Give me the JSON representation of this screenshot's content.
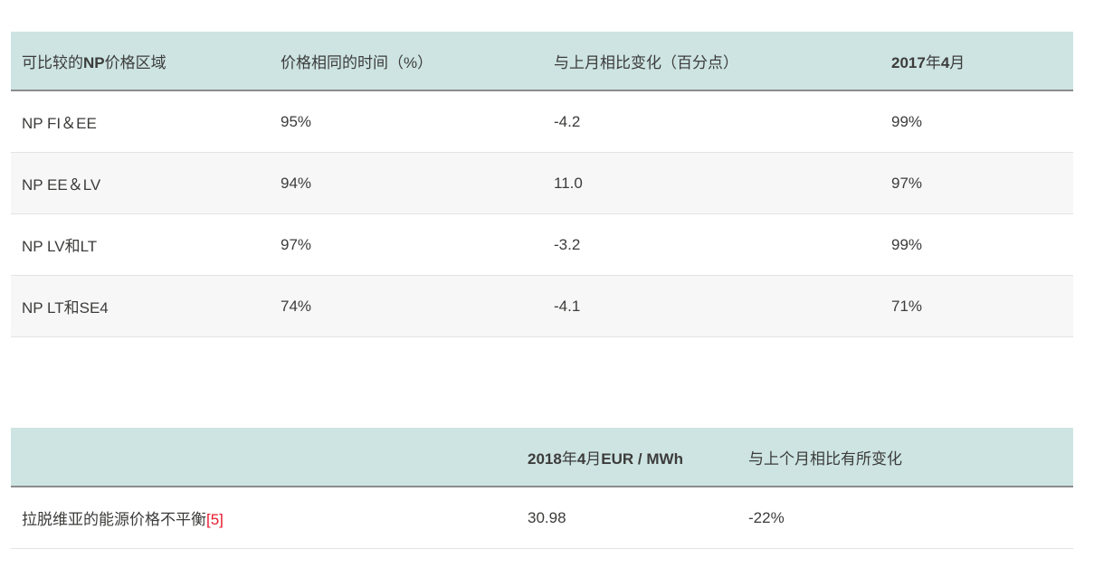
{
  "colors": {
    "header_bg": "#cde4e2",
    "header_border": "#8c8c8c",
    "row_border": "#e3e3e3",
    "row_alt_bg": "#f7f7f7",
    "text": "#3c3c3b",
    "footnote_red": "#e8192c"
  },
  "table1": {
    "headers": [
      {
        "segments": [
          {
            "text": "可比较的",
            "bold": false
          },
          {
            "text": "NP",
            "bold": true
          },
          {
            "text": "价格区域",
            "bold": false
          }
        ]
      },
      {
        "segments": [
          {
            "text": "价格相同的时间（%）",
            "bold": false
          }
        ]
      },
      {
        "segments": [
          {
            "text": "与上月相比变化（百分点）",
            "bold": false
          }
        ]
      },
      {
        "segments": [
          {
            "text": "2017",
            "bold": true
          },
          {
            "text": "年",
            "bold": false
          },
          {
            "text": "4",
            "bold": true
          },
          {
            "text": "月",
            "bold": false
          }
        ]
      }
    ],
    "rows": [
      {
        "area": "NP FI＆EE",
        "same_price_time": "95%",
        "change_pp": "-4.2",
        "april_2017": "99%"
      },
      {
        "area": "NP EE＆LV",
        "same_price_time": "94%",
        "change_pp": "11.0",
        "april_2017": "97%"
      },
      {
        "area": "NP LV和LT",
        "same_price_time": "97%",
        "change_pp": "-3.2",
        "april_2017": "99%"
      },
      {
        "area": "NP LT和SE4",
        "same_price_time": "74%",
        "change_pp": "-4.1",
        "april_2017": "71%"
      }
    ]
  },
  "table2": {
    "headers": [
      {
        "segments": []
      },
      {
        "segments": [
          {
            "text": "2018",
            "bold": true
          },
          {
            "text": "年",
            "bold": false
          },
          {
            "text": "4",
            "bold": true
          },
          {
            "text": "月",
            "bold": false
          },
          {
            "text": "EUR / MWh",
            "bold": true
          }
        ]
      },
      {
        "segments": [
          {
            "text": "与上个月相比有所变化",
            "bold": false
          }
        ]
      }
    ],
    "row": {
      "label": "拉脱维亚的能源价格不平衡",
      "footnote": "[5]",
      "value_eur": "30.98",
      "change": "-22%"
    }
  }
}
